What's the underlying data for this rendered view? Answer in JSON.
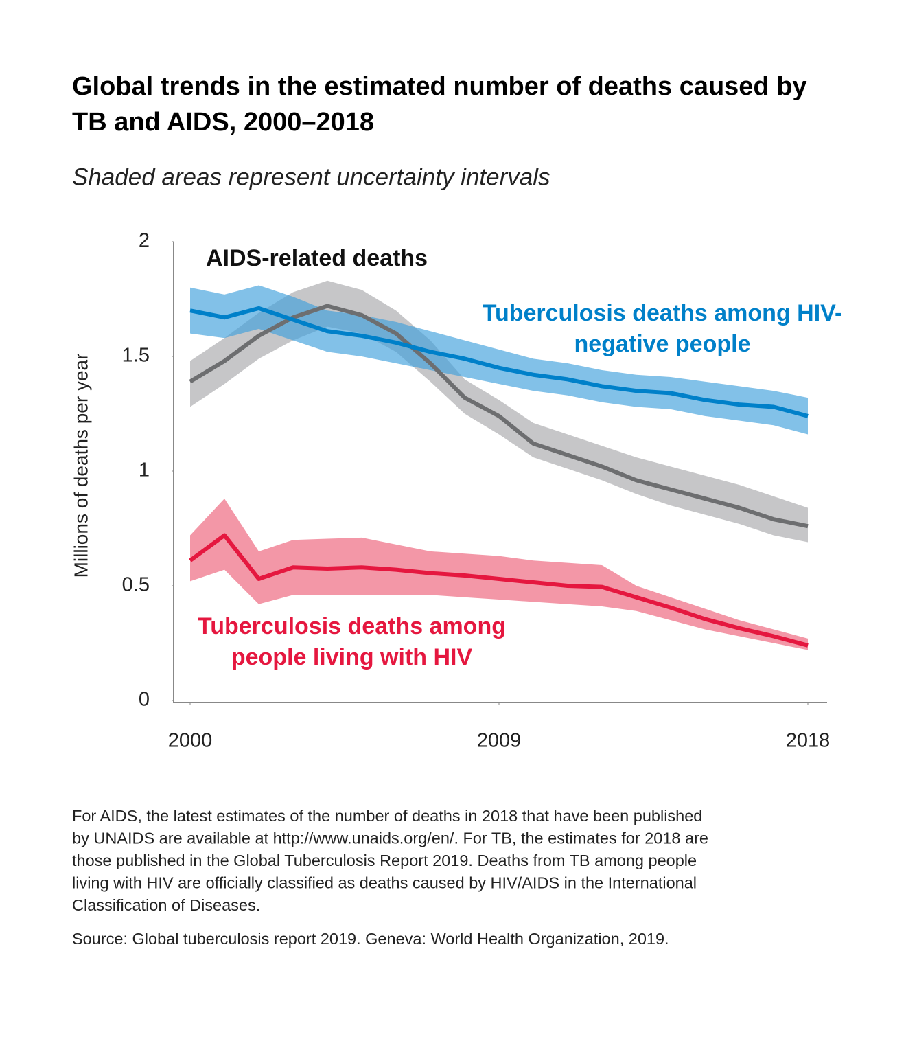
{
  "chart_data": {
    "type": "line",
    "title": "Global trends in the estimated number of deaths caused by TB and AIDS, 2000–2018",
    "subtitle": "Shaded areas represent uncertainty intervals",
    "y_label": "Millions of deaths per year",
    "x": [
      2000,
      2001,
      2002,
      2003,
      2004,
      2005,
      2006,
      2007,
      2008,
      2009,
      2010,
      2011,
      2012,
      2013,
      2014,
      2015,
      2016,
      2017,
      2018
    ],
    "xlim": [
      2000,
      2018
    ],
    "xticks": [
      2000,
      2009,
      2018
    ],
    "ylim": [
      0,
      2
    ],
    "yticks": [
      0,
      0.5,
      1,
      1.5,
      2
    ],
    "grid": false,
    "series": [
      {
        "name": "AIDS-related deaths",
        "color": "#6d6e70",
        "band_color": "#a7a8aa",
        "values": [
          1.39,
          1.48,
          1.59,
          1.67,
          1.72,
          1.68,
          1.6,
          1.47,
          1.32,
          1.24,
          1.12,
          1.07,
          1.02,
          0.96,
          0.92,
          0.88,
          0.84,
          0.79,
          0.76
        ],
        "lower": [
          1.28,
          1.38,
          1.49,
          1.57,
          1.63,
          1.6,
          1.52,
          1.39,
          1.25,
          1.16,
          1.06,
          1.01,
          0.96,
          0.9,
          0.85,
          0.81,
          0.77,
          0.72,
          0.69
        ],
        "upper": [
          1.48,
          1.58,
          1.69,
          1.78,
          1.83,
          1.79,
          1.7,
          1.57,
          1.4,
          1.31,
          1.21,
          1.16,
          1.11,
          1.06,
          1.02,
          0.98,
          0.94,
          0.89,
          0.84
        ]
      },
      {
        "name": "Tuberculosis deaths among HIV-negative people",
        "color": "#0080c9",
        "band_color": "#3fa0dc",
        "values": [
          1.7,
          1.67,
          1.71,
          1.66,
          1.61,
          1.59,
          1.56,
          1.52,
          1.49,
          1.45,
          1.42,
          1.4,
          1.37,
          1.35,
          1.34,
          1.31,
          1.29,
          1.28,
          1.24
        ],
        "lower": [
          1.6,
          1.58,
          1.62,
          1.57,
          1.52,
          1.5,
          1.47,
          1.44,
          1.41,
          1.38,
          1.35,
          1.33,
          1.3,
          1.28,
          1.27,
          1.24,
          1.22,
          1.2,
          1.16
        ],
        "upper": [
          1.8,
          1.77,
          1.81,
          1.76,
          1.7,
          1.68,
          1.65,
          1.61,
          1.57,
          1.53,
          1.49,
          1.47,
          1.44,
          1.42,
          1.41,
          1.39,
          1.37,
          1.35,
          1.32
        ]
      },
      {
        "name": "Tuberculosis deaths among people living with HIV",
        "color": "#e5173f",
        "band_color": "#ec5f78",
        "values": [
          0.61,
          0.72,
          0.53,
          0.58,
          0.575,
          0.58,
          0.57,
          0.555,
          0.545,
          0.53,
          0.515,
          0.5,
          0.495,
          0.45,
          0.405,
          0.355,
          0.315,
          0.28,
          0.24
        ],
        "lower": [
          0.52,
          0.57,
          0.42,
          0.46,
          0.46,
          0.46,
          0.46,
          0.46,
          0.45,
          0.44,
          0.43,
          0.42,
          0.41,
          0.39,
          0.35,
          0.31,
          0.28,
          0.25,
          0.22
        ],
        "upper": [
          0.72,
          0.88,
          0.65,
          0.7,
          0.705,
          0.71,
          0.68,
          0.65,
          0.64,
          0.63,
          0.61,
          0.6,
          0.59,
          0.5,
          0.45,
          0.4,
          0.35,
          0.31,
          0.27
        ]
      }
    ],
    "notes": [
      "For AIDS, the latest estimates of the number of deaths in 2018 that have been published",
      "by UNAIDS are available at http://www.unaids.org/en/. For TB, the estimates for 2018 are",
      "those published in the Global Tuberculosis Report 2019. Deaths from TB among people",
      "living with HIV are officially classified as deaths caused by HIV/AIDS in the International",
      "Classification of Diseases."
    ],
    "source": "Source: Global tuberculosis report 2019. Geneva: World Health Organization, 2019."
  }
}
